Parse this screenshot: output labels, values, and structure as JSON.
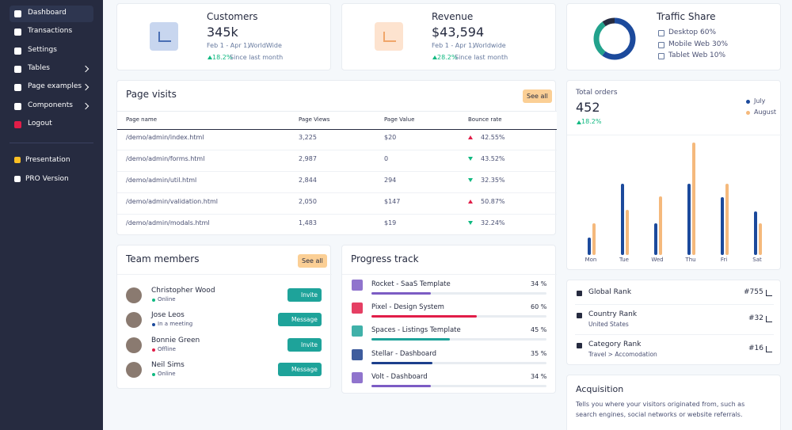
{
  "sidebar": {
    "items": [
      {
        "label": "Dashboard",
        "active": true
      },
      {
        "label": "Transactions"
      },
      {
        "label": "Settings"
      },
      {
        "label": "Tables",
        "arrow": true
      },
      {
        "label": "Page examples",
        "arrow": true
      },
      {
        "label": "Components",
        "arrow": true
      },
      {
        "label": "Logout"
      }
    ],
    "extra": [
      {
        "label": "Presentation"
      },
      {
        "label": "PRO Version"
      }
    ]
  },
  "customers": {
    "title": "Customers",
    "value": "345k",
    "period": "Feb 1 - Apr 1,",
    "region": "WorldWide",
    "change": "18.2%",
    "since": "Since last month"
  },
  "revenue": {
    "title": "Revenue",
    "value": "$43,594",
    "period": "Feb 1 - Apr 1,",
    "region": "Worldwide",
    "change": "28.2%",
    "since": "Since last month"
  },
  "traffic": {
    "title": "Traffic Share",
    "segments": [
      {
        "name": "Desktop",
        "percent": 60,
        "label": "60%",
        "color": "#1c4a9c"
      },
      {
        "name": "Mobile Web",
        "percent": 30,
        "label": "30%",
        "color": "#22a28c"
      },
      {
        "name": "Tablet Web",
        "percent": 10,
        "label": "10%",
        "color": "#262b40"
      }
    ]
  },
  "page_visits": {
    "title": "Page visits",
    "button": "See all",
    "columns": [
      "Page name",
      "Page Views",
      "Page Value",
      "Bounce rate"
    ],
    "rows": [
      [
        "/demo/admin/index.html",
        "3,225",
        "$20",
        "42.55%"
      ],
      [
        "/demo/admin/forms.html",
        "2,987",
        "0",
        "43.52%"
      ],
      [
        "/demo/admin/util.html",
        "2,844",
        "294",
        "32.35%"
      ],
      [
        "/demo/admin/validation.html",
        "2,050",
        "$147",
        "50.87%"
      ],
      [
        "/demo/admin/modals.html",
        "1,483",
        "$19",
        "32.24%"
      ]
    ],
    "bounce_trend": [
      "up",
      "down",
      "down",
      "up",
      "down"
    ]
  },
  "orders": {
    "title": "Total orders",
    "value": "452",
    "change": "18.2%",
    "chart": {
      "type": "bar",
      "categories": [
        "Mon",
        "Tue",
        "Wed",
        "Thu",
        "Fri",
        "Sat"
      ],
      "series": [
        {
          "name": "July",
          "color": "#1c4a9c",
          "values": [
            22,
            90,
            40,
            90,
            73,
            55
          ]
        },
        {
          "name": "August",
          "color": "#f5b97c",
          "values": [
            40,
            57,
            74,
            142,
            90,
            40
          ]
        }
      ],
      "ylim": [
        0,
        150
      ]
    }
  },
  "team": {
    "title": "Team members",
    "button": "See all",
    "members": [
      {
        "name": "Christopher Wood",
        "status": "Online",
        "status_color": "#10b981",
        "action": "Invite"
      },
      {
        "name": "Jose Leos",
        "status": "In a meeting",
        "status_color": "#1c4a9c",
        "action": "Message"
      },
      {
        "name": "Bonnie Green",
        "status": "Offline",
        "status_color": "#e11d48",
        "action": "Invite"
      },
      {
        "name": "Neil Sims",
        "status": "Online",
        "status_color": "#10b981",
        "action": "Message"
      }
    ]
  },
  "progress": {
    "title": "Progress track",
    "items": [
      {
        "name": "Rocket - SaaS Template",
        "percent": 34,
        "percent_label": "34 %",
        "color": "#7c5cc4"
      },
      {
        "name": "Pixel - Design System",
        "percent": 60,
        "percent_label": "60 %",
        "color": "#e11d48"
      },
      {
        "name": "Spaces - Listings Template",
        "percent": 45,
        "percent_label": "45 %",
        "color": "#1ea39a"
      },
      {
        "name": "Stellar - Dashboard",
        "percent": 35,
        "percent_label": "35 %",
        "color": "#1c3f8c"
      },
      {
        "name": "Volt - Dashboard",
        "percent": 34,
        "percent_label": "34 %",
        "color": "#7c5cc4"
      }
    ]
  },
  "ranks": [
    {
      "label": "Global Rank",
      "value": "#755"
    },
    {
      "label": "Country Rank",
      "sub": "United States",
      "value": "#32"
    },
    {
      "label": "Category Rank",
      "sub": "Travel > Accomodation",
      "value": "#16"
    }
  ],
  "acquisition": {
    "title": "Acquisition",
    "text": "Tells you where your visitors originated from, such as search engines, social networks or website referrals."
  }
}
